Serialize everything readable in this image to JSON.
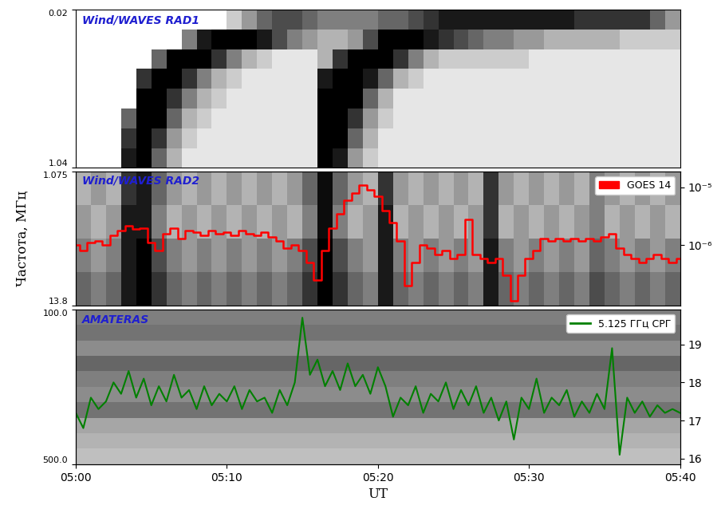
{
  "chart_data": [
    {
      "type": "heatmap",
      "title": "Wind/WAVES RAD1",
      "xlim": [
        0,
        40
      ],
      "ylim": [
        1.04,
        0.02
      ],
      "yticks": [
        0.02,
        1.04
      ],
      "tick_labels": "y",
      "cell_range": [
        0,
        1
      ],
      "cells": [
        [
          0,
          0,
          0,
          0,
          0,
          0,
          0,
          0,
          0,
          0,
          0.2,
          0.4,
          0.6,
          0.7,
          0.7,
          0.6,
          0.5,
          0.5,
          0.5,
          0.5,
          0.6,
          0.6,
          0.7,
          0.8,
          0.9,
          0.9,
          0.9,
          0.9,
          0.9,
          0.9,
          0.9,
          0.9,
          0.9,
          0.8,
          0.8,
          0.8,
          0.8,
          0.8,
          0.6,
          0.4
        ],
        [
          0,
          0,
          0,
          0,
          0,
          0,
          0,
          0.5,
          0.9,
          1,
          1,
          1,
          0.9,
          0.7,
          0.5,
          0.4,
          0.3,
          0.3,
          0.4,
          0.7,
          1,
          1,
          1,
          0.9,
          0.8,
          0.7,
          0.6,
          0.5,
          0.5,
          0.4,
          0.4,
          0.3,
          0.3,
          0.3,
          0.3,
          0.3,
          0.2,
          0.2,
          0.2,
          0.2
        ],
        [
          0,
          0,
          0,
          0,
          0,
          0.6,
          1,
          1,
          1,
          0.8,
          0.5,
          0.3,
          0.2,
          0.1,
          0.1,
          0.1,
          0.3,
          0.8,
          1,
          1,
          1,
          0.8,
          0.5,
          0.3,
          0.2,
          0.2,
          0.2,
          0.2,
          0.2,
          0.2,
          0.1,
          0.1,
          0.1,
          0.1,
          0.1,
          0.1,
          0.1,
          0.1,
          0.1,
          0.1
        ],
        [
          0,
          0,
          0,
          0,
          0.8,
          1,
          1,
          0.8,
          0.5,
          0.3,
          0.2,
          0.1,
          0.1,
          0.1,
          0.1,
          0.1,
          0.9,
          1,
          1,
          0.9,
          0.6,
          0.3,
          0.2,
          0.1,
          0.1,
          0.1,
          0.1,
          0.1,
          0.1,
          0.1,
          0.1,
          0.1,
          0.1,
          0.1,
          0.1,
          0.1,
          0.1,
          0.1,
          0.1,
          0.1
        ],
        [
          0,
          0,
          0,
          0,
          1,
          1,
          0.8,
          0.5,
          0.3,
          0.2,
          0.1,
          0.1,
          0.1,
          0.1,
          0.1,
          0.1,
          1,
          1,
          1,
          0.6,
          0.3,
          0.1,
          0.1,
          0.1,
          0.1,
          0.1,
          0.1,
          0.1,
          0.1,
          0.1,
          0.1,
          0.1,
          0.1,
          0.1,
          0.1,
          0.1,
          0.1,
          0.1,
          0.1,
          0.1
        ],
        [
          0,
          0,
          0,
          0.6,
          1,
          1,
          0.6,
          0.3,
          0.2,
          0.1,
          0.1,
          0.1,
          0.1,
          0.1,
          0.1,
          0.1,
          1,
          1,
          0.8,
          0.4,
          0.2,
          0.1,
          0.1,
          0.1,
          0.1,
          0.1,
          0.1,
          0.1,
          0.1,
          0.1,
          0.1,
          0.1,
          0.1,
          0.1,
          0.1,
          0.1,
          0.1,
          0.1,
          0.1,
          0.1
        ],
        [
          0,
          0,
          0,
          0.8,
          1,
          0.8,
          0.4,
          0.2,
          0.1,
          0.1,
          0.1,
          0.1,
          0.1,
          0.1,
          0.1,
          0.1,
          1,
          1,
          0.6,
          0.3,
          0.1,
          0.1,
          0.1,
          0.1,
          0.1,
          0.1,
          0.1,
          0.1,
          0.1,
          0.1,
          0.1,
          0.1,
          0.1,
          0.1,
          0.1,
          0.1,
          0.1,
          0.1,
          0.1,
          0.1
        ],
        [
          0,
          0,
          0,
          0.9,
          1,
          0.6,
          0.3,
          0.1,
          0.1,
          0.1,
          0.1,
          0.1,
          0.1,
          0.1,
          0.1,
          0.1,
          1,
          0.9,
          0.4,
          0.2,
          0.1,
          0.1,
          0.1,
          0.1,
          0.1,
          0.1,
          0.1,
          0.1,
          0.1,
          0.1,
          0.1,
          0.1,
          0.1,
          0.1,
          0.1,
          0.1,
          0.1,
          0.1,
          0.1,
          0.1
        ]
      ]
    },
    {
      "type": "heatmap",
      "title": "Wind/WAVES RAD2",
      "ylabel": "Частота, МГц",
      "xlim": [
        0,
        40
      ],
      "ylim": [
        13.8,
        1.075
      ],
      "yticks": [
        1.075,
        13.8
      ],
      "tick_labels": "y",
      "cell_range": [
        0,
        1
      ],
      "legend": "upper right",
      "y2lim": [
        9e-08,
        1.9e-05
      ],
      "y2ticks": [
        {
          "value": 1e-06,
          "label": "10⁻⁶"
        },
        {
          "value": 1e-05,
          "label": "10⁻⁵"
        }
      ],
      "cells": [
        [
          0.3,
          0.4,
          0.3,
          0.8,
          0.9,
          0.6,
          0.4,
          0.3,
          0.4,
          0.3,
          0.4,
          0.3,
          0.4,
          0.3,
          0.4,
          0.6,
          0.95,
          0.6,
          0.4,
          0.3,
          0.8,
          0.4,
          0.3,
          0.4,
          0.3,
          0.4,
          0.3,
          0.8,
          0.4,
          0.3,
          0.4,
          0.3,
          0.4,
          0.3,
          0.5,
          0.4,
          0.3,
          0.4,
          0.3,
          0.4
        ],
        [
          0.4,
          0.3,
          0.4,
          0.9,
          0.9,
          0.5,
          0.3,
          0.4,
          0.3,
          0.4,
          0.3,
          0.4,
          0.3,
          0.4,
          0.3,
          0.5,
          0.95,
          0.5,
          0.3,
          0.4,
          0.9,
          0.3,
          0.4,
          0.3,
          0.4,
          0.3,
          0.4,
          0.8,
          0.3,
          0.4,
          0.3,
          0.4,
          0.3,
          0.4,
          0.5,
          0.3,
          0.4,
          0.3,
          0.4,
          0.3
        ],
        [
          0.5,
          0.4,
          0.5,
          0.9,
          1.0,
          0.7,
          0.5,
          0.4,
          0.5,
          0.4,
          0.5,
          0.4,
          0.5,
          0.4,
          0.5,
          0.7,
          1.0,
          0.7,
          0.5,
          0.4,
          0.9,
          0.5,
          0.4,
          0.5,
          0.4,
          0.5,
          0.4,
          0.9,
          0.5,
          0.4,
          0.5,
          0.4,
          0.5,
          0.4,
          0.6,
          0.5,
          0.4,
          0.5,
          0.4,
          0.5
        ],
        [
          0.6,
          0.5,
          0.6,
          0.9,
          1.0,
          0.8,
          0.6,
          0.5,
          0.6,
          0.5,
          0.6,
          0.5,
          0.6,
          0.5,
          0.6,
          0.8,
          1.0,
          0.8,
          0.6,
          0.5,
          0.9,
          0.6,
          0.5,
          0.6,
          0.5,
          0.6,
          0.5,
          0.9,
          0.6,
          0.5,
          0.6,
          0.5,
          0.6,
          0.5,
          0.7,
          0.6,
          0.5,
          0.6,
          0.5,
          0.6
        ]
      ],
      "series": [
        {
          "name": "GOES 14",
          "color": "#ff0000",
          "type": "line",
          "line_style": "steps",
          "axis": "y2",
          "log": true,
          "x": [
            0,
            0.5,
            1,
            1.5,
            2,
            2.5,
            3,
            3.5,
            4,
            4.5,
            5,
            5.5,
            6,
            6.5,
            7,
            7.5,
            8,
            8.5,
            9,
            9.5,
            10,
            10.5,
            11,
            11.5,
            12,
            12.5,
            13,
            13.5,
            14,
            14.5,
            15,
            15.5,
            16,
            16.5,
            17,
            17.5,
            18,
            18.5,
            19,
            19.5,
            20,
            20.5,
            21,
            21.5,
            22,
            22.5,
            23,
            23.5,
            24,
            24.5,
            25,
            25.5,
            26,
            26.5,
            27,
            27.5,
            28,
            28.5,
            29,
            29.5,
            30,
            30.5,
            31,
            31.5,
            32,
            32.5,
            33,
            33.5,
            34,
            34.5,
            35,
            35.5,
            36,
            36.5,
            37,
            37.5,
            38,
            38.5,
            39,
            39.5,
            40
          ],
          "values": [
            1e-06,
            8e-07,
            1.1e-06,
            1.2e-06,
            1e-06,
            1.5e-06,
            1.8e-06,
            2.2e-06,
            1.9e-06,
            2e-06,
            1.1e-06,
            8e-07,
            1.6e-06,
            2e-06,
            1.3e-06,
            1.8e-06,
            1.7e-06,
            1.5e-06,
            1.8e-06,
            1.6e-06,
            1.7e-06,
            1.5e-06,
            1.8e-06,
            1.6e-06,
            1.5e-06,
            1.7e-06,
            1.4e-06,
            1.2e-06,
            9e-07,
            1e-06,
            8e-07,
            5e-07,
            2.5e-07,
            8e-07,
            2e-06,
            3.5e-06,
            6e-06,
            8e-06,
            1.1e-05,
            9e-06,
            7e-06,
            4e-06,
            2.5e-06,
            1.2e-06,
            2e-07,
            5e-07,
            1e-06,
            9e-07,
            7e-07,
            8e-07,
            6e-07,
            7e-07,
            2.8e-06,
            7e-07,
            6e-07,
            5e-07,
            6e-07,
            3e-07,
            1.1e-07,
            3e-07,
            6e-07,
            8e-07,
            1.3e-06,
            1.2e-06,
            1.3e-06,
            1.2e-06,
            1.3e-06,
            1.2e-06,
            1.3e-06,
            1.2e-06,
            1.4e-06,
            1.6e-06,
            9e-07,
            7e-07,
            6e-07,
            5e-07,
            6e-07,
            7e-07,
            6e-07,
            5e-07,
            6e-07
          ]
        }
      ]
    },
    {
      "type": "heatmap",
      "title": "AMATERAS",
      "xlabel": "UT",
      "xlim": [
        0,
        40
      ],
      "ylim": [
        500.0,
        100.0
      ],
      "yticks": [
        100.0,
        500.0
      ],
      "xticks": [
        {
          "value": 0,
          "label": "05:00"
        },
        {
          "value": 10,
          "label": "05:10"
        },
        {
          "value": 20,
          "label": "05:20"
        },
        {
          "value": 30,
          "label": "05:30"
        },
        {
          "value": 40,
          "label": "05:40"
        }
      ],
      "cell_range": [
        0,
        1
      ],
      "legend": "upper right",
      "y2lim": [
        15.85,
        19.92
      ],
      "y2ticks": [
        16,
        17,
        18,
        19
      ],
      "cells": [
        [
          0.5
        ],
        [
          0.55
        ],
        [
          0.45
        ],
        [
          0.6
        ],
        [
          0.5
        ],
        [
          0.45
        ],
        [
          0.55
        ],
        [
          0.35
        ],
        [
          0.3
        ],
        [
          0.25
        ]
      ],
      "series": [
        {
          "name": "5.125 ГГц СРГ",
          "color": "#008000",
          "type": "line",
          "line_style": "solid",
          "axis": "y2",
          "x": [
            0,
            0.5,
            1,
            1.5,
            2,
            2.5,
            3,
            3.5,
            4,
            4.5,
            5,
            5.5,
            6,
            6.5,
            7,
            7.5,
            8,
            8.5,
            9,
            9.5,
            10,
            10.5,
            11,
            11.5,
            12,
            12.5,
            13,
            13.5,
            14,
            14.5,
            15,
            15.5,
            16,
            16.5,
            17,
            17.5,
            18,
            18.5,
            19,
            19.5,
            20,
            20.5,
            21,
            21.5,
            22,
            22.5,
            23,
            23.5,
            24,
            24.5,
            25,
            25.5,
            26,
            26.5,
            27,
            27.5,
            28,
            28.5,
            29,
            29.5,
            30,
            30.5,
            31,
            31.5,
            32,
            32.5,
            33,
            33.5,
            34,
            34.5,
            35,
            35.5,
            36,
            36.5,
            37,
            37.5,
            38,
            38.5,
            39,
            39.5,
            40
          ],
          "values": [
            17.2,
            16.8,
            17.6,
            17.3,
            17.5,
            18.0,
            17.7,
            18.3,
            17.6,
            18.1,
            17.4,
            17.9,
            17.5,
            18.2,
            17.6,
            17.8,
            17.3,
            17.9,
            17.4,
            17.7,
            17.5,
            17.9,
            17.3,
            17.8,
            17.5,
            17.6,
            17.2,
            17.8,
            17.4,
            18.0,
            19.7,
            18.2,
            18.6,
            17.9,
            18.3,
            17.8,
            18.5,
            17.9,
            18.2,
            17.7,
            18.4,
            17.9,
            17.1,
            17.6,
            17.4,
            17.9,
            17.2,
            17.7,
            17.5,
            18.0,
            17.3,
            17.8,
            17.4,
            17.9,
            17.2,
            17.6,
            17.0,
            17.5,
            16.5,
            17.6,
            17.3,
            18.1,
            17.2,
            17.6,
            17.4,
            17.8,
            17.1,
            17.5,
            17.2,
            17.7,
            17.3,
            18.9,
            16.1,
            17.6,
            17.2,
            17.5,
            17.1,
            17.4,
            17.2,
            17.3,
            17.2
          ]
        }
      ]
    }
  ]
}
